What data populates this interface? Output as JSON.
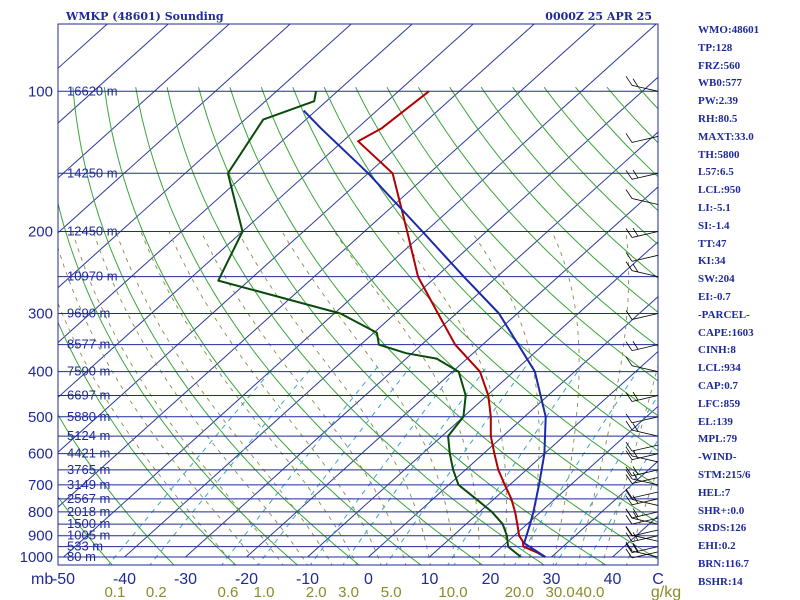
{
  "header": {
    "station": "WMKP (48601) Sounding",
    "valid_time": "0000Z 25 APR 25"
  },
  "indices": [
    "WMO:48601",
    "TP:128",
    "FRZ:560",
    "WB0:577",
    "PW:2.39",
    "RH:80.5",
    "MAXT:33.0",
    "TH:5800",
    "L57:6.5",
    "LCL:950",
    "LI:-5.1",
    "SI:-1.4",
    "TT:47",
    "KI:34",
    "SW:204",
    "EI:-0.7",
    "-PARCEL-",
    "CAPE:1603",
    "CINH:8",
    "LCL:934",
    "CAP:0.7",
    "LFC:859",
    "EL:139",
    "MPL:79",
    "-WIND-",
    "STM:215/6",
    "HEL:7",
    "SHR+:0.0",
    "SRDS:126",
    "EHI:0.2",
    "BRN:116.7",
    "BSHR:14"
  ],
  "colors": {
    "isobar": "#1f2a99",
    "isotherm": "#2b3a9e",
    "dry_adiabat": "#3aa53a",
    "moist_adiabat": "#8a8a50",
    "mixing_ratio": "#3aa8c8",
    "temperature": "#b00000",
    "dewpoint": "#0a4a0a",
    "parcel": "#1a2aa8",
    "label_text": "#1f2a99",
    "mixing_label": "#8a8a2a"
  },
  "chart_data": {
    "type": "skew-t log-p sounding",
    "pressure_unit": "mb",
    "temperature_unit": "C",
    "mixing_ratio_unit": "g/kg",
    "pressure_range": [
      1000,
      100
    ],
    "temperature_range": [
      -50,
      40
    ],
    "pressure_ticks": [
      1000,
      900,
      800,
      700,
      600,
      500,
      400,
      300,
      200,
      100
    ],
    "temperature_ticks": [
      -50,
      -40,
      -30,
      -20,
      -10,
      0,
      10,
      20,
      30,
      40
    ],
    "mixing_ratio_ticks": [
      "0.1",
      "0.2",
      "0.6",
      "1.0",
      "2.0",
      "3.0",
      "5.0",
      "10.0",
      "20.0",
      "30.0",
      "40.0"
    ],
    "height_labels": [
      {
        "p": 1000,
        "label": "80 m"
      },
      {
        "p": 950,
        "label": "533 m"
      },
      {
        "p": 900,
        "label": "1005 m"
      },
      {
        "p": 850,
        "label": "1500 m"
      },
      {
        "p": 800,
        "label": "2018 m"
      },
      {
        "p": 750,
        "label": "2567 m"
      },
      {
        "p": 700,
        "label": "3149 m"
      },
      {
        "p": 650,
        "label": "3765 m"
      },
      {
        "p": 600,
        "label": "4421 m"
      },
      {
        "p": 550,
        "label": "5124 m"
      },
      {
        "p": 500,
        "label": "5880 m"
      },
      {
        "p": 450,
        "label": "6697 m"
      },
      {
        "p": 400,
        "label": "7590 m"
      },
      {
        "p": 350,
        "label": "8577 m"
      },
      {
        "p": 300,
        "label": "9690 m"
      },
      {
        "p": 250,
        "label": "10970 m"
      },
      {
        "p": 200,
        "label": "12450 m"
      },
      {
        "p": 150,
        "label": "14250 m"
      },
      {
        "p": 100,
        "label": "16620 m"
      }
    ],
    "series": [
      {
        "name": "temperature",
        "points": [
          {
            "p": 1000,
            "t": 29.0
          },
          {
            "p": 975,
            "t": 26.5
          },
          {
            "p": 950,
            "t": 23.5
          },
          {
            "p": 925,
            "t": 22.4
          },
          {
            "p": 900,
            "t": 20.8
          },
          {
            "p": 850,
            "t": 18.4
          },
          {
            "p": 800,
            "t": 15.8
          },
          {
            "p": 750,
            "t": 12.8
          },
          {
            "p": 700,
            "t": 9.2
          },
          {
            "p": 650,
            "t": 5.4
          },
          {
            "p": 600,
            "t": 1.8
          },
          {
            "p": 550,
            "t": -2.0
          },
          {
            "p": 500,
            "t": -5.5
          },
          {
            "p": 450,
            "t": -9.8
          },
          {
            "p": 400,
            "t": -15.5
          },
          {
            "p": 350,
            "t": -24.5
          },
          {
            "p": 300,
            "t": -33.0
          },
          {
            "p": 250,
            "t": -43.0
          },
          {
            "p": 200,
            "t": -53.0
          },
          {
            "p": 150,
            "t": -66.0
          },
          {
            "p": 128,
            "t": -77.5
          },
          {
            "p": 120,
            "t": -76.0
          },
          {
            "p": 100,
            "t": -75.0
          }
        ]
      },
      {
        "name": "dewpoint",
        "points": [
          {
            "p": 1000,
            "t": 25.0
          },
          {
            "p": 975,
            "t": 23.0
          },
          {
            "p": 950,
            "t": 21.0
          },
          {
            "p": 900,
            "t": 18.8
          },
          {
            "p": 850,
            "t": 16.0
          },
          {
            "p": 800,
            "t": 12.0
          },
          {
            "p": 750,
            "t": 7.0
          },
          {
            "p": 700,
            "t": 1.6
          },
          {
            "p": 650,
            "t": -2.0
          },
          {
            "p": 600,
            "t": -5.5
          },
          {
            "p": 550,
            "t": -9.0
          },
          {
            "p": 500,
            "t": -10.0
          },
          {
            "p": 450,
            "t": -13.5
          },
          {
            "p": 400,
            "t": -19.0
          },
          {
            "p": 375,
            "t": -25.0
          },
          {
            "p": 365,
            "t": -31.0
          },
          {
            "p": 350,
            "t": -37.0
          },
          {
            "p": 330,
            "t": -39.5
          },
          {
            "p": 300,
            "t": -49.0
          },
          {
            "p": 255,
            "t": -75.0
          },
          {
            "p": 200,
            "t": -80.0
          },
          {
            "p": 150,
            "t": -93.0
          },
          {
            "p": 115,
            "t": -97.0
          },
          {
            "p": 105,
            "t": -92.0
          },
          {
            "p": 100,
            "t": -93.5
          }
        ]
      },
      {
        "name": "parcel",
        "points": [
          {
            "p": 1000,
            "t": 29.0
          },
          {
            "p": 934,
            "t": 23.0
          },
          {
            "p": 850,
            "t": 20.5
          },
          {
            "p": 800,
            "t": 18.8
          },
          {
            "p": 700,
            "t": 14.8
          },
          {
            "p": 600,
            "t": 10.0
          },
          {
            "p": 500,
            "t": 3.5
          },
          {
            "p": 400,
            "t": -6.5
          },
          {
            "p": 300,
            "t": -23.0
          },
          {
            "p": 250,
            "t": -35.5
          },
          {
            "p": 200,
            "t": -50.5
          },
          {
            "p": 150,
            "t": -70.0
          },
          {
            "p": 120,
            "t": -86.0
          },
          {
            "p": 110,
            "t": -92.0
          }
        ]
      }
    ],
    "wind_barbs_present": true
  }
}
